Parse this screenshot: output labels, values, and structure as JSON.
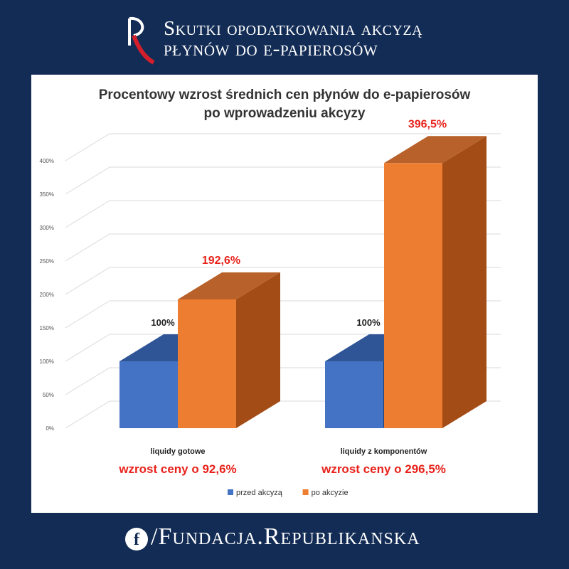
{
  "header": {
    "title_line1": "Skutki opodatkowania akcyzą",
    "title_line2": "płynów do e-papierosów"
  },
  "footer": {
    "icon": "facebook-icon",
    "handle": "/Fundacja.Republikanska"
  },
  "colors": {
    "background": "#132c55",
    "before": "#4472c4",
    "after": "#ed7d31",
    "highlight": "#e8221b"
  },
  "chart_data": {
    "type": "bar",
    "style": "3d",
    "title_line1": "Procentowy wzrost średnich cen płynów do e-papierosów",
    "title_line2": "po wprowadzeniu akcyzy",
    "categories": [
      "liquidy gotowe",
      "liquidy z komponentów"
    ],
    "series": [
      {
        "name": "przed akcyzą",
        "values": [
          100,
          100
        ],
        "labels": [
          "100%",
          "100%"
        ],
        "color": "#4472c4"
      },
      {
        "name": "po akcyzie",
        "values": [
          192.6,
          396.5
        ],
        "labels": [
          "192,6%",
          "396,5%"
        ],
        "color": "#ed7d31"
      }
    ],
    "annotations": [
      "wzrost ceny o 92,6%",
      "wzrost ceny o 296,5%"
    ],
    "ylim": [
      0,
      400
    ],
    "yticks": [
      0,
      50,
      100,
      150,
      200,
      250,
      300,
      350,
      400
    ],
    "ytick_labels": [
      "0%",
      "50%",
      "100%",
      "150%",
      "200%",
      "250%",
      "300%",
      "350%",
      "400%"
    ],
    "grid": true,
    "legend": "bottom"
  }
}
